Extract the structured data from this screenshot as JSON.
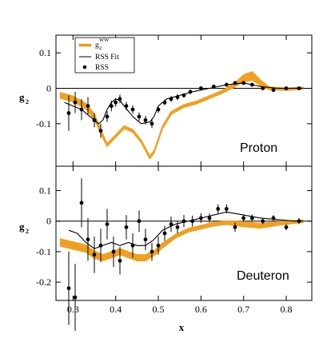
{
  "chart_data": [
    {
      "type": "line",
      "panel_label": "Proton",
      "ylabel": "g",
      "ylabel_sub": "2",
      "xlim": [
        0.26,
        0.86
      ],
      "ylim": [
        -0.22,
        0.15
      ],
      "x_ticks": [
        0.3,
        0.4,
        0.5,
        0.6,
        0.7,
        0.8
      ],
      "y_ticks": [
        0.1,
        0,
        -0.1
      ],
      "y_tick_labels": [
        "0.1",
        "0",
        "-0.1"
      ],
      "legend": {
        "placement": "top-left",
        "entries": [
          {
            "label": "g",
            "sub": "2",
            "sup": "WW",
            "style": "band",
            "color": "#f0a020"
          },
          {
            "label": "RSS Fit",
            "style": "line",
            "color": "#000000"
          },
          {
            "label": "RSS",
            "style": "points",
            "color": "#000000"
          }
        ]
      },
      "series": [
        {
          "name": "g2 WW",
          "style": "band",
          "color": "#f0a020",
          "x": [
            0.27,
            0.3,
            0.33,
            0.35,
            0.37,
            0.38,
            0.4,
            0.42,
            0.44,
            0.46,
            0.48,
            0.49,
            0.51,
            0.53,
            0.56,
            0.59,
            0.62,
            0.65,
            0.68,
            0.7,
            0.72,
            0.74,
            0.76,
            0.8,
            0.84
          ],
          "y": [
            -0.02,
            -0.03,
            -0.05,
            -0.08,
            -0.135,
            -0.16,
            -0.135,
            -0.11,
            -0.12,
            -0.15,
            -0.195,
            -0.18,
            -0.11,
            -0.07,
            -0.05,
            -0.04,
            -0.025,
            -0.01,
            0.01,
            0.028,
            0.035,
            0.015,
            0.0,
            -0.003,
            0.0
          ],
          "half_width": [
            0.008,
            0.008,
            0.008,
            0.008,
            0.006,
            0.004,
            0.004,
            0.004,
            0.004,
            0.004,
            0.004,
            0.004,
            0.004,
            0.004,
            0.004,
            0.004,
            0.004,
            0.004,
            0.006,
            0.01,
            0.012,
            0.008,
            0.004,
            0.003,
            0.003
          ]
        },
        {
          "name": "RSS Fit",
          "style": "line",
          "color": "#000000",
          "x": [
            0.28,
            0.3,
            0.32,
            0.34,
            0.36,
            0.37,
            0.38,
            0.39,
            0.4,
            0.41,
            0.42,
            0.44,
            0.46,
            0.48,
            0.49,
            0.5,
            0.52,
            0.55,
            0.58,
            0.62,
            0.66,
            0.7,
            0.74,
            0.78,
            0.82,
            0.84
          ],
          "y": [
            -0.04,
            -0.05,
            -0.06,
            -0.08,
            -0.1,
            -0.09,
            -0.06,
            -0.04,
            -0.03,
            -0.035,
            -0.05,
            -0.08,
            -0.1,
            -0.095,
            -0.08,
            -0.05,
            -0.03,
            -0.02,
            -0.01,
            0.0,
            0.01,
            0.015,
            0.005,
            0.0,
            0.0,
            0.0
          ]
        },
        {
          "name": "RSS",
          "style": "points",
          "color": "#000000",
          "x": [
            0.29,
            0.305,
            0.32,
            0.335,
            0.35,
            0.365,
            0.38,
            0.39,
            0.4,
            0.41,
            0.425,
            0.44,
            0.455,
            0.47,
            0.485,
            0.5,
            0.515,
            0.53,
            0.545,
            0.56,
            0.575,
            0.6,
            0.63,
            0.66,
            0.68,
            0.7,
            0.72,
            0.745,
            0.77,
            0.8,
            0.83
          ],
          "y": [
            -0.07,
            -0.04,
            -0.06,
            -0.05,
            -0.09,
            -0.12,
            -0.08,
            -0.05,
            -0.04,
            -0.03,
            -0.05,
            -0.06,
            -0.08,
            -0.09,
            -0.1,
            -0.06,
            -0.04,
            -0.03,
            -0.025,
            -0.02,
            -0.01,
            0.0,
            0.005,
            0.01,
            0.015,
            0.015,
            0.01,
            0.0,
            -0.005,
            0.0,
            0.0
          ],
          "err": [
            0.05,
            0.03,
            0.03,
            0.025,
            0.02,
            0.02,
            0.015,
            0.015,
            0.012,
            0.012,
            0.012,
            0.012,
            0.012,
            0.012,
            0.012,
            0.01,
            0.008,
            0.008,
            0.008,
            0.006,
            0.006,
            0.005,
            0.005,
            0.005,
            0.005,
            0.005,
            0.005,
            0.004,
            0.004,
            0.004,
            0.004
          ]
        }
      ]
    },
    {
      "type": "line",
      "panel_label": "Deuteron",
      "xlabel": "x",
      "ylabel": "g",
      "ylabel_sub": "2",
      "xlim": [
        0.26,
        0.86
      ],
      "ylim": [
        -0.26,
        0.18
      ],
      "x_ticks": [
        0.3,
        0.4,
        0.5,
        0.6,
        0.7,
        0.8
      ],
      "x_tick_labels": [
        "0.3",
        "0.4",
        "0.5",
        "0.6",
        "0.7",
        "0.8"
      ],
      "y_ticks": [
        0.1,
        0,
        -0.1,
        -0.2
      ],
      "y_tick_labels": [
        "0.1",
        "0",
        "-0.1",
        "-0.2"
      ],
      "series": [
        {
          "name": "g2 WW",
          "style": "band",
          "color": "#f0a020",
          "x": [
            0.27,
            0.3,
            0.33,
            0.35,
            0.37,
            0.39,
            0.41,
            0.43,
            0.45,
            0.47,
            0.49,
            0.51,
            0.54,
            0.57,
            0.6,
            0.63,
            0.66,
            0.7,
            0.74,
            0.78,
            0.84
          ],
          "y": [
            -0.07,
            -0.08,
            -0.09,
            -0.11,
            -0.12,
            -0.11,
            -0.1,
            -0.11,
            -0.12,
            -0.12,
            -0.105,
            -0.08,
            -0.05,
            -0.03,
            -0.02,
            -0.01,
            -0.005,
            -0.01,
            -0.015,
            -0.008,
            0.0
          ],
          "half_width": [
            0.012,
            0.012,
            0.012,
            0.012,
            0.01,
            0.01,
            0.01,
            0.01,
            0.01,
            0.01,
            0.008,
            0.008,
            0.006,
            0.006,
            0.006,
            0.006,
            0.006,
            0.008,
            0.008,
            0.006,
            0.004
          ]
        },
        {
          "name": "RSS Fit",
          "style": "line",
          "color": "#000000",
          "x": [
            0.29,
            0.31,
            0.33,
            0.35,
            0.37,
            0.39,
            0.41,
            0.43,
            0.45,
            0.47,
            0.49,
            0.51,
            0.54,
            0.57,
            0.6,
            0.63,
            0.66,
            0.7,
            0.74,
            0.78,
            0.82,
            0.84
          ],
          "y": [
            -0.03,
            -0.04,
            -0.07,
            -0.09,
            -0.08,
            -0.07,
            -0.08,
            -0.07,
            -0.08,
            -0.08,
            -0.06,
            -0.03,
            -0.01,
            0.0,
            0.01,
            0.02,
            0.03,
            0.02,
            0.01,
            0.005,
            0.0,
            0.0
          ],
          "err": []
        },
        {
          "name": "RSS",
          "style": "points",
          "color": "#000000",
          "x": [
            0.29,
            0.305,
            0.32,
            0.335,
            0.35,
            0.365,
            0.38,
            0.395,
            0.41,
            0.425,
            0.44,
            0.455,
            0.47,
            0.485,
            0.5,
            0.515,
            0.53,
            0.545,
            0.56,
            0.58,
            0.6,
            0.62,
            0.64,
            0.66,
            0.68,
            0.7,
            0.72,
            0.745,
            0.77,
            0.8,
            0.83
          ],
          "y": [
            -0.22,
            -0.25,
            0.06,
            -0.06,
            -0.11,
            -0.08,
            -0.01,
            -0.1,
            -0.13,
            -0.02,
            -0.08,
            0.0,
            -0.06,
            -0.1,
            -0.08,
            -0.04,
            -0.01,
            -0.02,
            0.0,
            0.0,
            0.01,
            0.01,
            0.04,
            0.04,
            -0.02,
            0.01,
            0.01,
            0.0,
            0.01,
            -0.02,
            0.0
          ],
          "err": [
            0.12,
            0.11,
            0.08,
            0.07,
            0.06,
            0.055,
            0.05,
            0.05,
            0.045,
            0.04,
            0.04,
            0.035,
            0.035,
            0.03,
            0.03,
            0.025,
            0.025,
            0.02,
            0.02,
            0.018,
            0.016,
            0.015,
            0.015,
            0.015,
            0.015,
            0.012,
            0.012,
            0.01,
            0.01,
            0.01,
            0.01
          ]
        }
      ]
    }
  ]
}
